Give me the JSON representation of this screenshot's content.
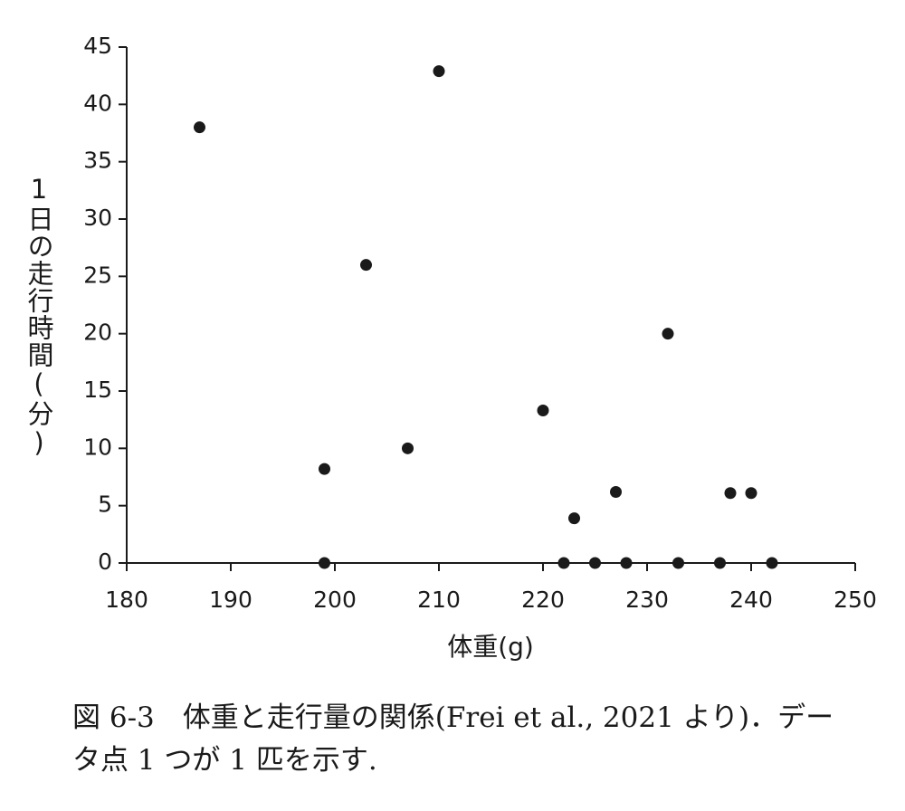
{
  "chart_data": {
    "type": "scatter",
    "x_label": "体重(g)",
    "y_label": "1日の走行時間(分)",
    "caption": "図 6‑3　体重と走行量の関係(Frei et al., 2021 より)．データ点 1 つが 1 匹を示す.",
    "color": "#1a1a1a",
    "x": [
      187,
      210,
      203,
      199,
      199,
      207,
      220,
      232,
      222,
      223,
      225,
      227,
      228,
      233,
      237,
      238,
      240,
      242
    ],
    "y": [
      38,
      42.9,
      26,
      8.2,
      0,
      10,
      13.3,
      20,
      0,
      3.9,
      0,
      6.2,
      0,
      0,
      0,
      6.1,
      6.1,
      0
    ],
    "xlim": [
      180,
      250
    ],
    "xticks": [
      180,
      190,
      200,
      210,
      220,
      230,
      240,
      250
    ],
    "ylim": [
      0,
      45
    ],
    "yticks": [
      0,
      5,
      10,
      15,
      20,
      25,
      30,
      35,
      40,
      45
    ]
  }
}
